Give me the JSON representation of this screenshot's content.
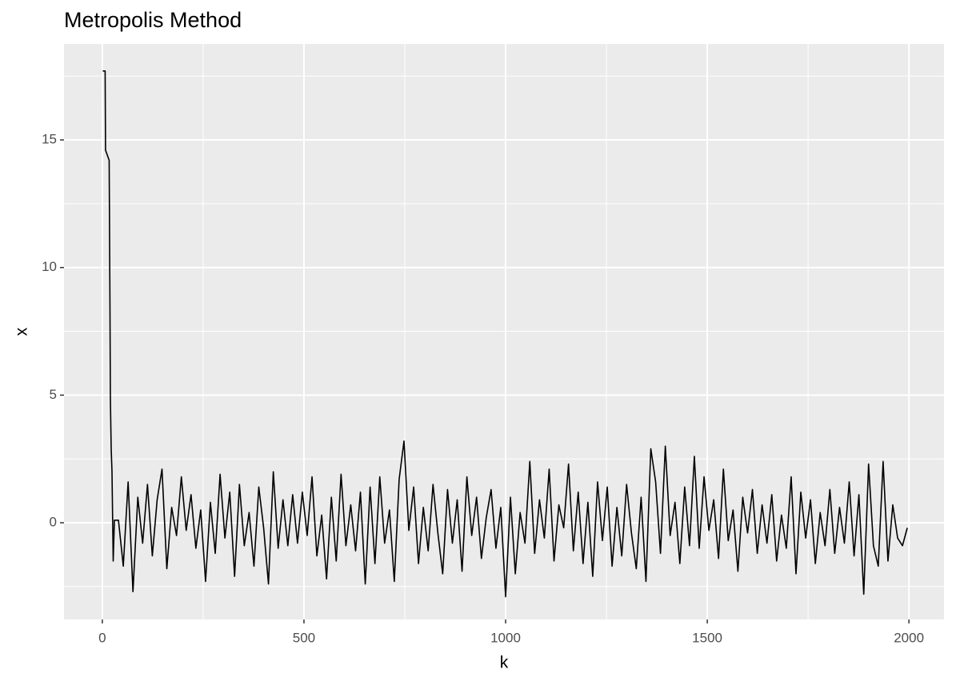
{
  "chart_data": {
    "type": "line",
    "title": "Metropolis Method",
    "x_label": "k",
    "y_label": "x",
    "x": [
      1,
      7,
      8,
      17,
      19,
      20,
      22,
      24,
      27,
      30,
      40,
      52,
      64,
      76,
      88,
      100,
      112,
      124,
      136,
      148,
      160,
      172,
      184,
      196,
      208,
      220,
      232,
      244,
      256,
      268,
      280,
      292,
      304,
      316,
      328,
      340,
      352,
      364,
      376,
      388,
      400,
      412,
      424,
      436,
      448,
      460,
      472,
      484,
      496,
      508,
      520,
      532,
      544,
      556,
      568,
      580,
      592,
      604,
      616,
      628,
      640,
      652,
      664,
      676,
      688,
      700,
      712,
      724,
      736,
      748,
      760,
      772,
      784,
      796,
      808,
      820,
      832,
      844,
      856,
      868,
      880,
      892,
      904,
      916,
      928,
      940,
      952,
      964,
      976,
      988,
      1000,
      1012,
      1024,
      1036,
      1048,
      1060,
      1072,
      1084,
      1096,
      1108,
      1120,
      1132,
      1144,
      1156,
      1168,
      1180,
      1192,
      1204,
      1216,
      1228,
      1240,
      1252,
      1264,
      1276,
      1288,
      1300,
      1312,
      1324,
      1336,
      1348,
      1360,
      1372,
      1384,
      1396,
      1408,
      1420,
      1432,
      1444,
      1456,
      1468,
      1480,
      1492,
      1504,
      1516,
      1528,
      1540,
      1552,
      1564,
      1576,
      1588,
      1600,
      1612,
      1624,
      1636,
      1648,
      1660,
      1672,
      1684,
      1696,
      1708,
      1720,
      1732,
      1744,
      1756,
      1768,
      1780,
      1792,
      1804,
      1816,
      1828,
      1840,
      1852,
      1864,
      1876,
      1888,
      1900,
      1912,
      1924,
      1936,
      1948,
      1960,
      1972,
      1984,
      1996
    ],
    "values": [
      17.7,
      17.7,
      14.6,
      14.2,
      8.4,
      4.9,
      2.9,
      2.0,
      -1.5,
      0.1,
      0.1,
      -1.7,
      1.6,
      -2.7,
      1.0,
      -0.8,
      1.5,
      -1.3,
      0.9,
      2.1,
      -1.8,
      0.6,
      -0.5,
      1.8,
      -0.3,
      1.1,
      -1.0,
      0.5,
      -2.3,
      0.8,
      -1.2,
      1.9,
      -0.6,
      1.2,
      -2.1,
      1.5,
      -0.9,
      0.4,
      -1.7,
      1.4,
      -0.2,
      -2.4,
      2.0,
      -1.0,
      0.9,
      -0.9,
      1.1,
      -0.8,
      1.2,
      -0.5,
      1.8,
      -1.3,
      0.3,
      -2.2,
      1.0,
      -1.5,
      1.9,
      -0.9,
      0.7,
      -1.1,
      1.2,
      -2.4,
      1.4,
      -1.6,
      1.8,
      -0.8,
      0.5,
      -2.3,
      1.7,
      3.2,
      -0.3,
      1.4,
      -1.6,
      0.6,
      -1.1,
      1.5,
      -0.4,
      -2.0,
      1.3,
      -0.8,
      0.9,
      -1.9,
      1.8,
      -0.5,
      1.0,
      -1.4,
      0.2,
      1.3,
      -1.0,
      0.6,
      -2.9,
      1.0,
      -2.0,
      0.4,
      -0.8,
      2.4,
      -1.2,
      0.9,
      -0.6,
      2.1,
      -1.5,
      0.7,
      -0.2,
      2.3,
      -1.1,
      1.2,
      -1.6,
      0.8,
      -2.1,
      1.6,
      -0.7,
      1.4,
      -1.7,
      0.6,
      -1.3,
      1.5,
      -0.4,
      -1.8,
      1.0,
      -2.3,
      2.9,
      1.6,
      -1.2,
      3.0,
      -0.5,
      0.8,
      -1.6,
      1.4,
      -0.9,
      2.6,
      -1.0,
      1.8,
      -0.3,
      0.9,
      -1.4,
      2.1,
      -0.7,
      0.5,
      -1.9,
      1.0,
      -0.4,
      1.3,
      -1.2,
      0.7,
      -0.8,
      1.1,
      -1.5,
      0.3,
      -1.0,
      1.8,
      -2.0,
      1.2,
      -0.6,
      0.9,
      -1.6,
      0.4,
      -0.9,
      1.3,
      -1.2,
      0.6,
      -0.8,
      1.6,
      -1.3,
      1.1,
      -2.8,
      2.3,
      -0.9,
      -1.7,
      2.4,
      -1.5,
      0.7,
      -0.6,
      -0.9,
      -0.2
    ],
    "color": "#000000",
    "xlim": [
      -95,
      2087
    ],
    "ylim": [
      -3.79,
      18.76
    ],
    "xticks": [
      0,
      500,
      1000,
      1500,
      2000
    ],
    "yticks": [
      0,
      5,
      10,
      15
    ],
    "grid": true,
    "minor_grid": true
  }
}
